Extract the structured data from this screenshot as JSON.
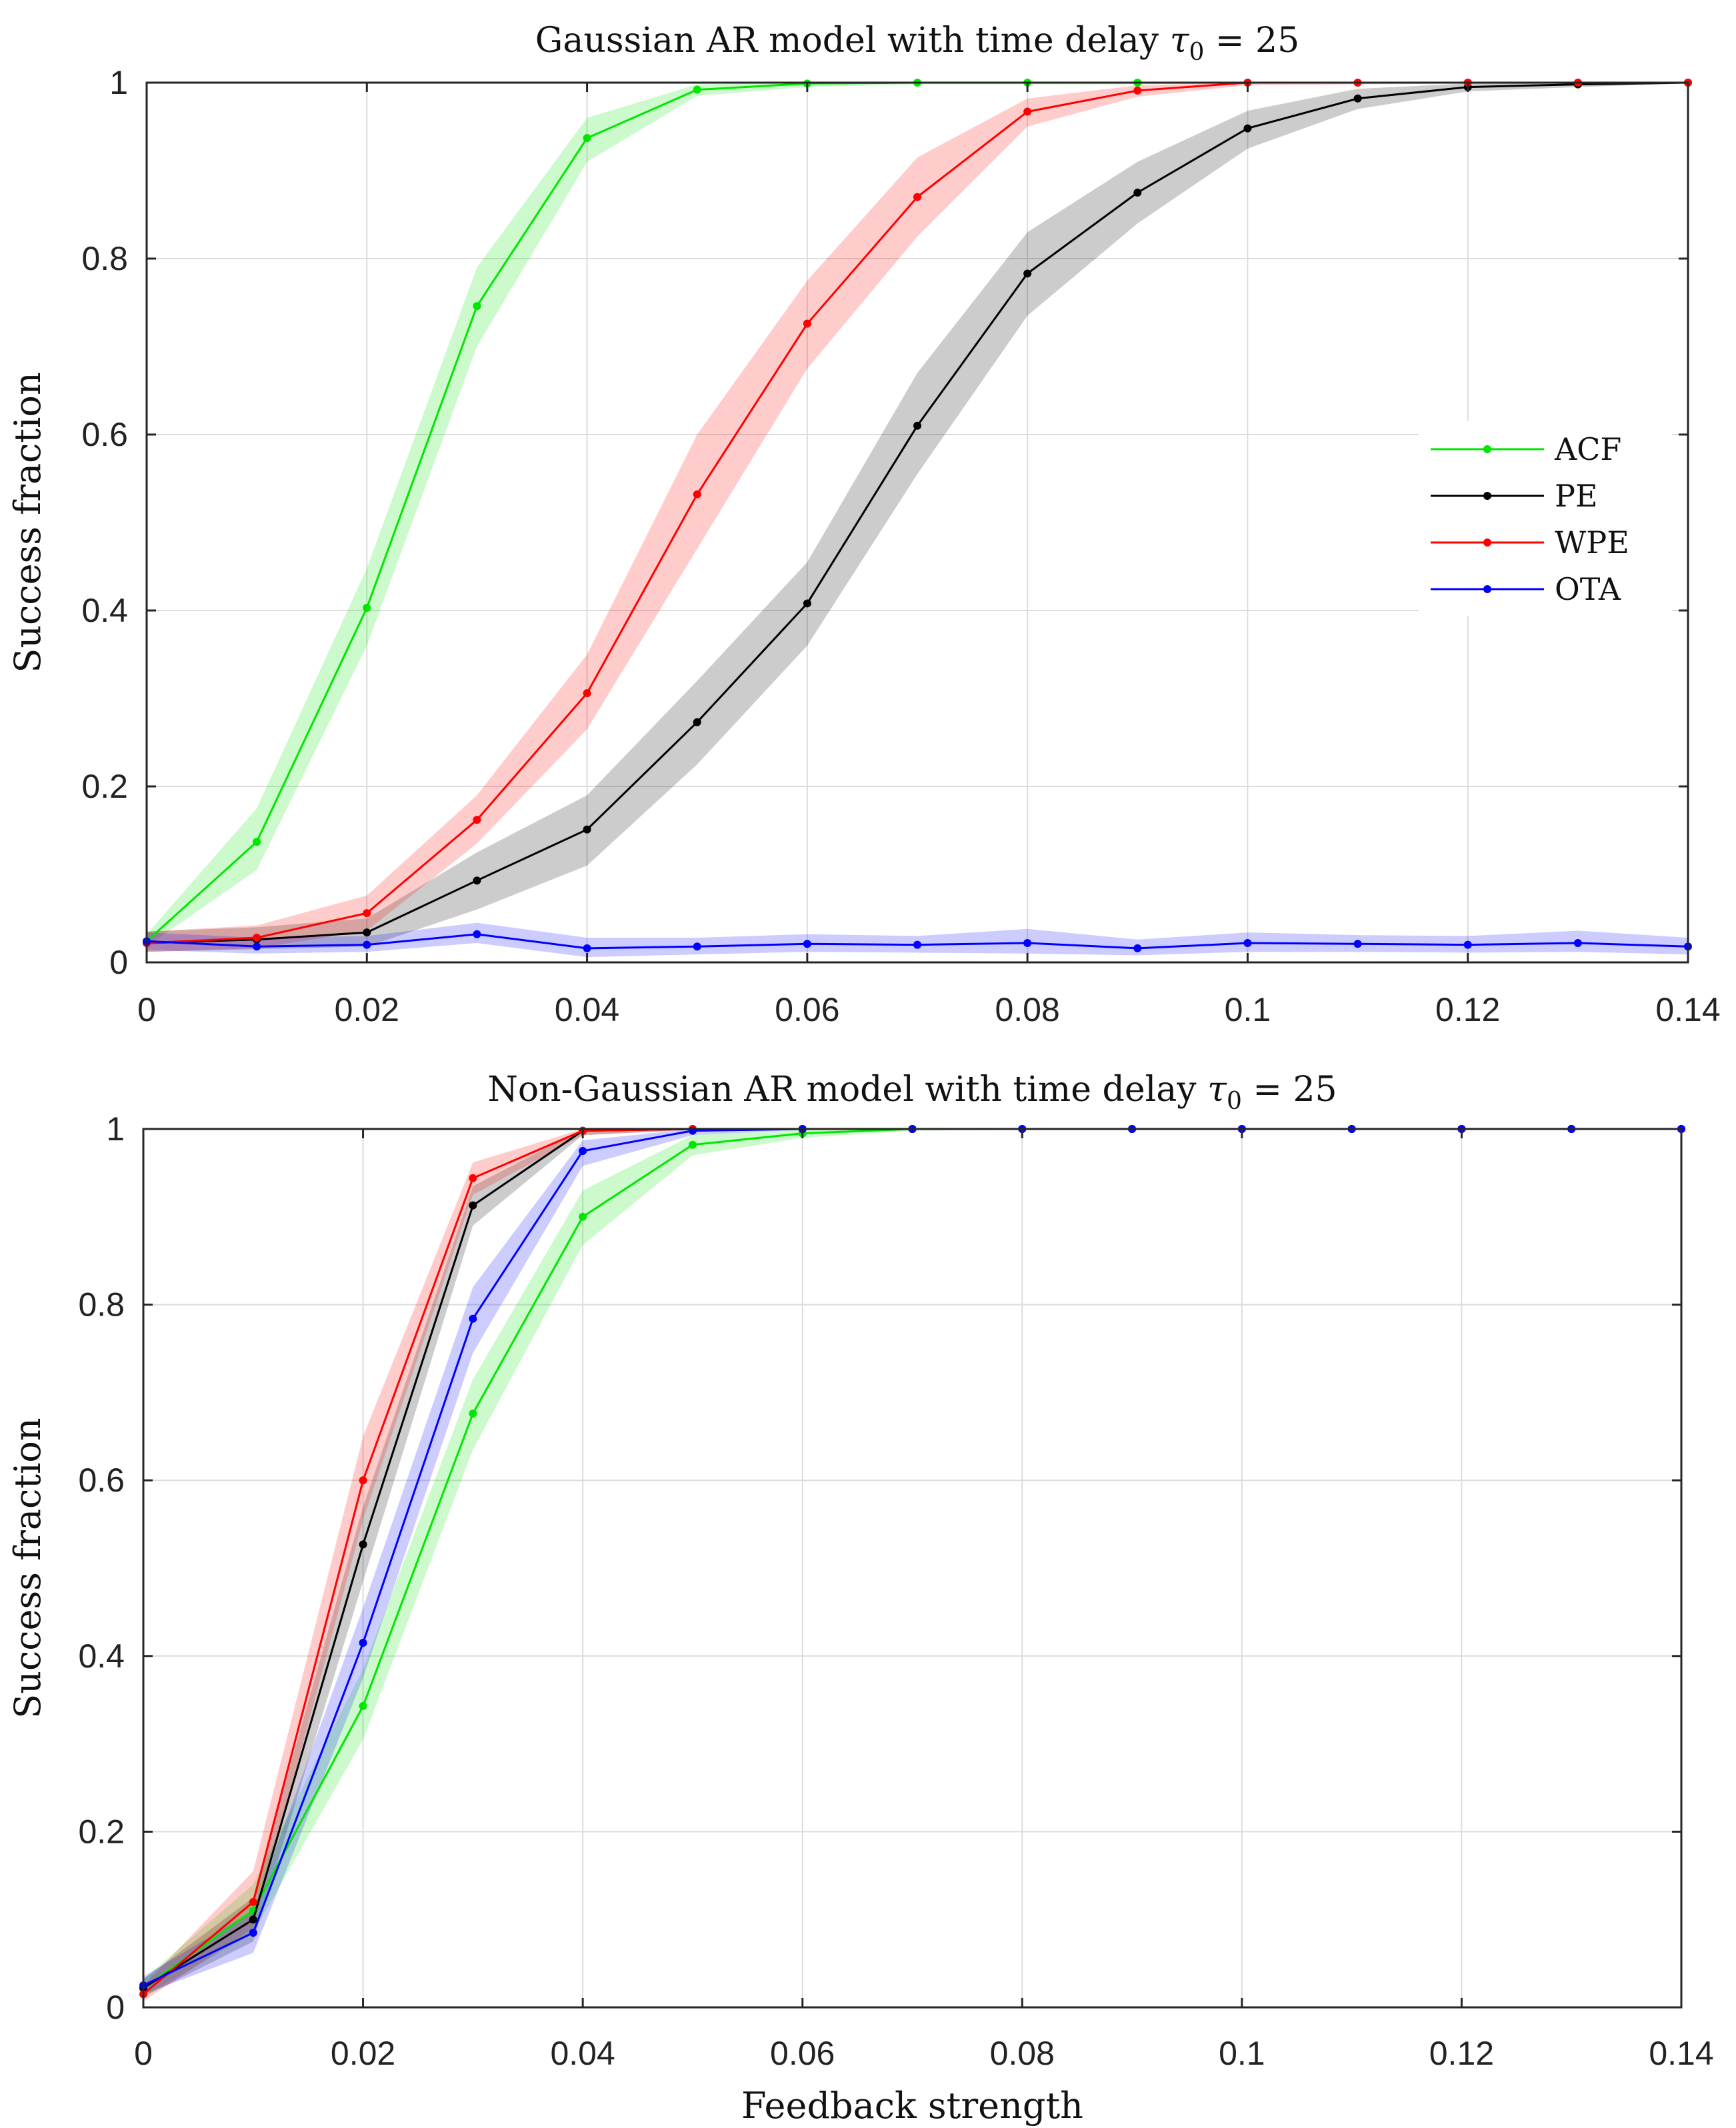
{
  "chart_data": [
    {
      "type": "line",
      "title_prefix": "Gaussian AR model with time delay",
      "title_math": "τ",
      "title_sub": "0",
      "title_suffix": " = 25",
      "xlabel": "",
      "ylabel": "Success fraction",
      "xlim": [
        0,
        0.14
      ],
      "ylim": [
        0,
        1
      ],
      "grid": true,
      "xticks": [
        0,
        0.02,
        0.04,
        0.06,
        0.08,
        0.1,
        0.12,
        0.14
      ],
      "xtick_labels": [
        "0",
        "0.02",
        "0.04",
        "0.06",
        "0.08",
        "0.1",
        "0.12",
        "0.14"
      ],
      "yticks": [
        0,
        0.2,
        0.4,
        0.6,
        0.8,
        1
      ],
      "ytick_labels": [
        "0",
        "0.2",
        "0.4",
        "0.6",
        "0.8",
        "1"
      ],
      "legend_position": "right-middle",
      "x": [
        0,
        0.01,
        0.02,
        0.03,
        0.04,
        0.05,
        0.06,
        0.07,
        0.08,
        0.09,
        0.1,
        0.11,
        0.12,
        0.13,
        0.14
      ],
      "series": [
        {
          "name": "ACF",
          "color": "#00e600",
          "values": [
            0.024,
            0.137,
            0.403,
            0.746,
            0.937,
            0.992,
            0.999,
            1.0,
            1.0,
            1.0,
            1.0,
            1.0,
            1.0,
            1.0,
            1.0
          ],
          "lower": [
            0.018,
            0.105,
            0.36,
            0.7,
            0.91,
            0.985,
            0.995,
            0.998,
            0.998,
            0.998,
            0.999,
            0.999,
            0.999,
            0.999,
            0.999
          ],
          "upper": [
            0.032,
            0.175,
            0.448,
            0.79,
            0.96,
            0.998,
            1.0,
            1.0,
            1.0,
            1.0,
            1.0,
            1.0,
            1.0,
            1.0,
            1.0
          ]
        },
        {
          "name": "PE",
          "color": "#000000",
          "values": [
            0.022,
            0.026,
            0.034,
            0.093,
            0.151,
            0.273,
            0.408,
            0.61,
            0.783,
            0.875,
            0.948,
            0.982,
            0.995,
            0.998,
            1.0
          ],
          "lower": [
            0.012,
            0.015,
            0.018,
            0.06,
            0.11,
            0.225,
            0.36,
            0.555,
            0.735,
            0.84,
            0.925,
            0.97,
            0.99,
            0.995,
            0.999
          ],
          "upper": [
            0.035,
            0.04,
            0.05,
            0.125,
            0.19,
            0.32,
            0.455,
            0.67,
            0.83,
            0.91,
            0.968,
            0.993,
            0.999,
            1.0,
            1.0
          ]
        },
        {
          "name": "WPE",
          "color": "#ff0000",
          "values": [
            0.022,
            0.028,
            0.056,
            0.162,
            0.306,
            0.532,
            0.726,
            0.87,
            0.967,
            0.991,
            1.0,
            1.0,
            1.0,
            1.0,
            1.0
          ],
          "lower": [
            0.012,
            0.016,
            0.036,
            0.135,
            0.265,
            0.47,
            0.675,
            0.825,
            0.95,
            0.984,
            0.997,
            0.998,
            0.999,
            0.999,
            1.0
          ],
          "upper": [
            0.035,
            0.042,
            0.076,
            0.19,
            0.35,
            0.6,
            0.775,
            0.915,
            0.982,
            0.997,
            1.0,
            1.0,
            1.0,
            1.0,
            1.0
          ]
        },
        {
          "name": "OTA",
          "color": "#0000ff",
          "values": [
            0.024,
            0.018,
            0.02,
            0.032,
            0.016,
            0.018,
            0.021,
            0.02,
            0.022,
            0.016,
            0.022,
            0.021,
            0.02,
            0.022,
            0.018
          ],
          "lower": [
            0.014,
            0.01,
            0.012,
            0.022,
            0.006,
            0.009,
            0.012,
            0.011,
            0.01,
            0.008,
            0.012,
            0.012,
            0.011,
            0.012,
            0.009
          ],
          "upper": [
            0.034,
            0.028,
            0.03,
            0.045,
            0.028,
            0.028,
            0.032,
            0.03,
            0.038,
            0.026,
            0.034,
            0.031,
            0.03,
            0.036,
            0.028
          ]
        }
      ]
    },
    {
      "type": "line",
      "title_prefix": "Non-Gaussian AR model with time delay",
      "title_math": "τ",
      "title_sub": "0",
      "title_suffix": " = 25",
      "xlabel": "Feedback strength",
      "ylabel": "Success fraction",
      "xlim": [
        0,
        0.14
      ],
      "ylim": [
        0,
        1
      ],
      "grid": true,
      "xticks": [
        0,
        0.02,
        0.04,
        0.06,
        0.08,
        0.1,
        0.12,
        0.14
      ],
      "xtick_labels": [
        "0",
        "0.02",
        "0.04",
        "0.06",
        "0.08",
        "0.1",
        "0.12",
        "0.14"
      ],
      "yticks": [
        0,
        0.2,
        0.4,
        0.6,
        0.8,
        1
      ],
      "ytick_labels": [
        "0",
        "0.2",
        "0.4",
        "0.6",
        "0.8",
        "1"
      ],
      "legend_position": "none",
      "x": [
        0,
        0.01,
        0.02,
        0.03,
        0.04,
        0.05,
        0.06,
        0.07,
        0.08,
        0.09,
        0.1,
        0.11,
        0.12,
        0.13,
        0.14
      ],
      "series": [
        {
          "name": "ACF",
          "color": "#00e600",
          "values": [
            0.022,
            0.11,
            0.343,
            0.676,
            0.9,
            0.982,
            0.995,
            1.0,
            1.0,
            1.0,
            1.0,
            1.0,
            1.0,
            1.0,
            1.0
          ],
          "lower": [
            0.012,
            0.085,
            0.305,
            0.635,
            0.868,
            0.97,
            0.99,
            0.998,
            0.999,
            1.0,
            1.0,
            1.0,
            1.0,
            1.0,
            1.0
          ],
          "upper": [
            0.032,
            0.14,
            0.385,
            0.715,
            0.93,
            0.993,
            0.999,
            1.0,
            1.0,
            1.0,
            1.0,
            1.0,
            1.0,
            1.0,
            1.0
          ]
        },
        {
          "name": "PE",
          "color": "#000000",
          "values": [
            0.022,
            0.1,
            0.527,
            0.913,
            0.998,
            1.0,
            1.0,
            1.0,
            1.0,
            1.0,
            1.0,
            1.0,
            1.0,
            1.0,
            1.0
          ],
          "lower": [
            0.012,
            0.075,
            0.485,
            0.89,
            0.993,
            0.999,
            1.0,
            1.0,
            1.0,
            1.0,
            1.0,
            1.0,
            1.0,
            1.0,
            1.0
          ],
          "upper": [
            0.032,
            0.125,
            0.57,
            0.935,
            1.0,
            1.0,
            1.0,
            1.0,
            1.0,
            1.0,
            1.0,
            1.0,
            1.0,
            1.0,
            1.0
          ]
        },
        {
          "name": "WPE",
          "color": "#ff0000",
          "values": [
            0.015,
            0.12,
            0.6,
            0.944,
            0.998,
            1.0,
            1.0,
            1.0,
            1.0,
            1.0,
            1.0,
            1.0,
            1.0,
            1.0,
            1.0
          ],
          "lower": [
            0.007,
            0.09,
            0.555,
            0.925,
            0.993,
            0.999,
            1.0,
            1.0,
            1.0,
            1.0,
            1.0,
            1.0,
            1.0,
            1.0,
            1.0
          ],
          "upper": [
            0.025,
            0.155,
            0.65,
            0.962,
            1.0,
            1.0,
            1.0,
            1.0,
            1.0,
            1.0,
            1.0,
            1.0,
            1.0,
            1.0,
            1.0
          ]
        },
        {
          "name": "OTA",
          "color": "#0000ff",
          "values": [
            0.025,
            0.085,
            0.415,
            0.784,
            0.975,
            0.998,
            1.0,
            1.0,
            1.0,
            1.0,
            1.0,
            1.0,
            1.0,
            1.0,
            1.0
          ],
          "lower": [
            0.015,
            0.062,
            0.375,
            0.745,
            0.958,
            0.993,
            0.999,
            1.0,
            1.0,
            1.0,
            1.0,
            1.0,
            1.0,
            1.0,
            1.0
          ],
          "upper": [
            0.035,
            0.11,
            0.455,
            0.82,
            0.987,
            1.0,
            1.0,
            1.0,
            1.0,
            1.0,
            1.0,
            1.0,
            1.0,
            1.0,
            1.0
          ]
        }
      ]
    }
  ]
}
